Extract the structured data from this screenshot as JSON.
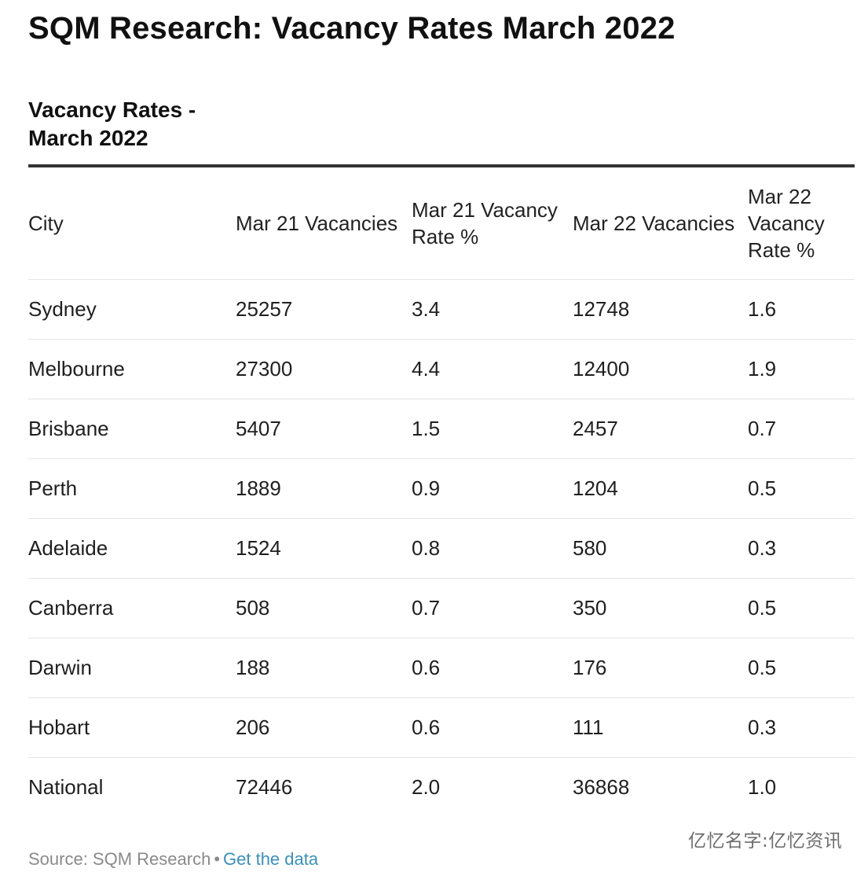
{
  "page_title": "SQM Research: Vacancy Rates March 2022",
  "table_title": "Vacancy Rates - March 2022",
  "chart_data": {
    "type": "table",
    "title": "Vacancy Rates - March 2022",
    "columns": [
      "City",
      "Mar 21 Vacancies",
      "Mar 21 Vacancy Rate %",
      "Mar 22 Vacancies",
      "Mar 22 Vacancy Rate %"
    ],
    "rows": [
      [
        "Sydney",
        "25257",
        "3.4",
        "12748",
        "1.6"
      ],
      [
        "Melbourne",
        "27300",
        "4.4",
        "12400",
        "1.9"
      ],
      [
        "Brisbane",
        "5407",
        "1.5",
        "2457",
        "0.7"
      ],
      [
        "Perth",
        "1889",
        "0.9",
        "1204",
        "0.5"
      ],
      [
        "Adelaide",
        "1524",
        "0.8",
        "580",
        "0.3"
      ],
      [
        "Canberra",
        "508",
        "0.7",
        "350",
        "0.5"
      ],
      [
        "Darwin",
        "188",
        "0.6",
        "176",
        "0.5"
      ],
      [
        "Hobart",
        "206",
        "0.6",
        "111",
        "0.3"
      ],
      [
        "National",
        "72446",
        "2.0",
        "36868",
        "1.0"
      ]
    ]
  },
  "footer": {
    "source_text": "Source: SQM Research",
    "separator": "•",
    "link_text": "Get the data"
  },
  "watermark": "亿忆名字:亿忆资讯",
  "colors": {
    "title": "#111111",
    "rule": "#333333",
    "row_divider": "#e4e4e4",
    "source": "#8a8a8a",
    "link": "#3b8fb8"
  }
}
